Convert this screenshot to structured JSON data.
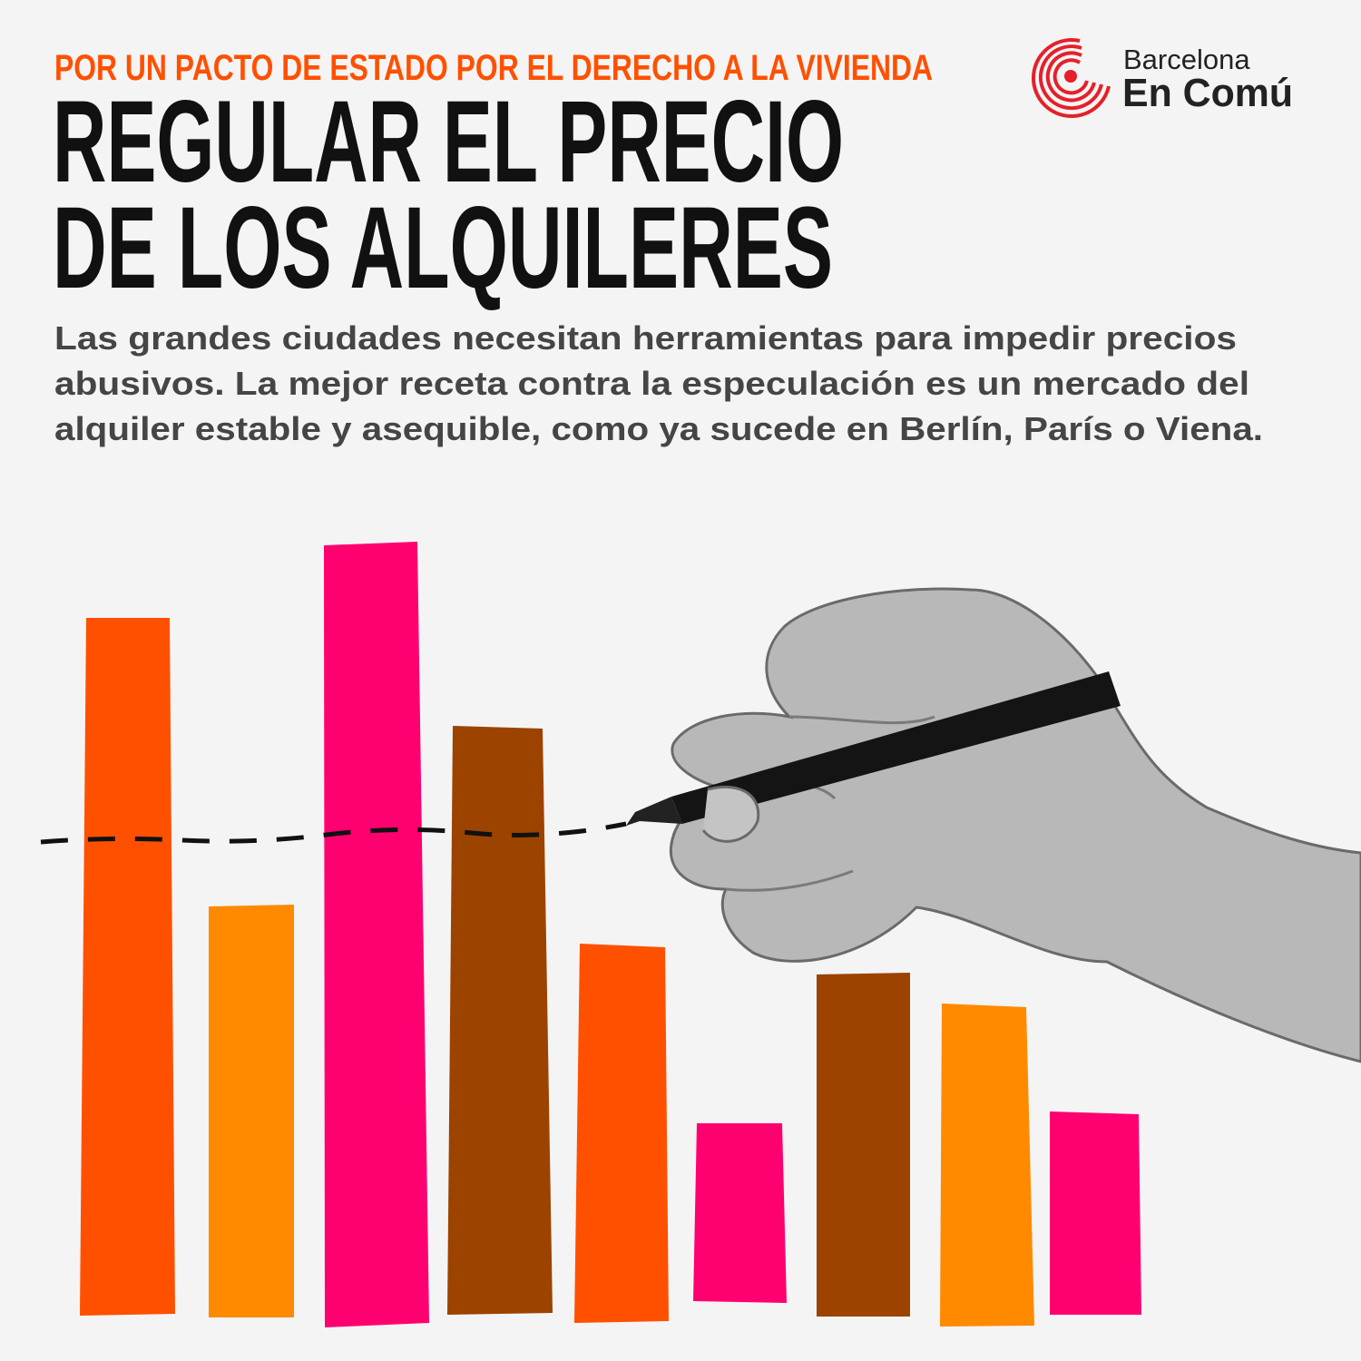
{
  "header": {
    "kicker": "POR UN PACTO DE ESTADO POR EL DERECHO A LA VIVIENDA",
    "title": [
      "REGULAR EL PRECIO",
      "DE LOS ALQUILERES"
    ],
    "body": [
      "Las grandes ciudades necesitan herramientas para impedir precios",
      "abusivos. La mejor receta contra la especulación es un mercado del",
      "alquiler estable y asequible, como ya sucede en Berlín, París o Viena."
    ]
  },
  "logo": {
    "line1": "Barcelona",
    "line2": "En Comú"
  }
}
